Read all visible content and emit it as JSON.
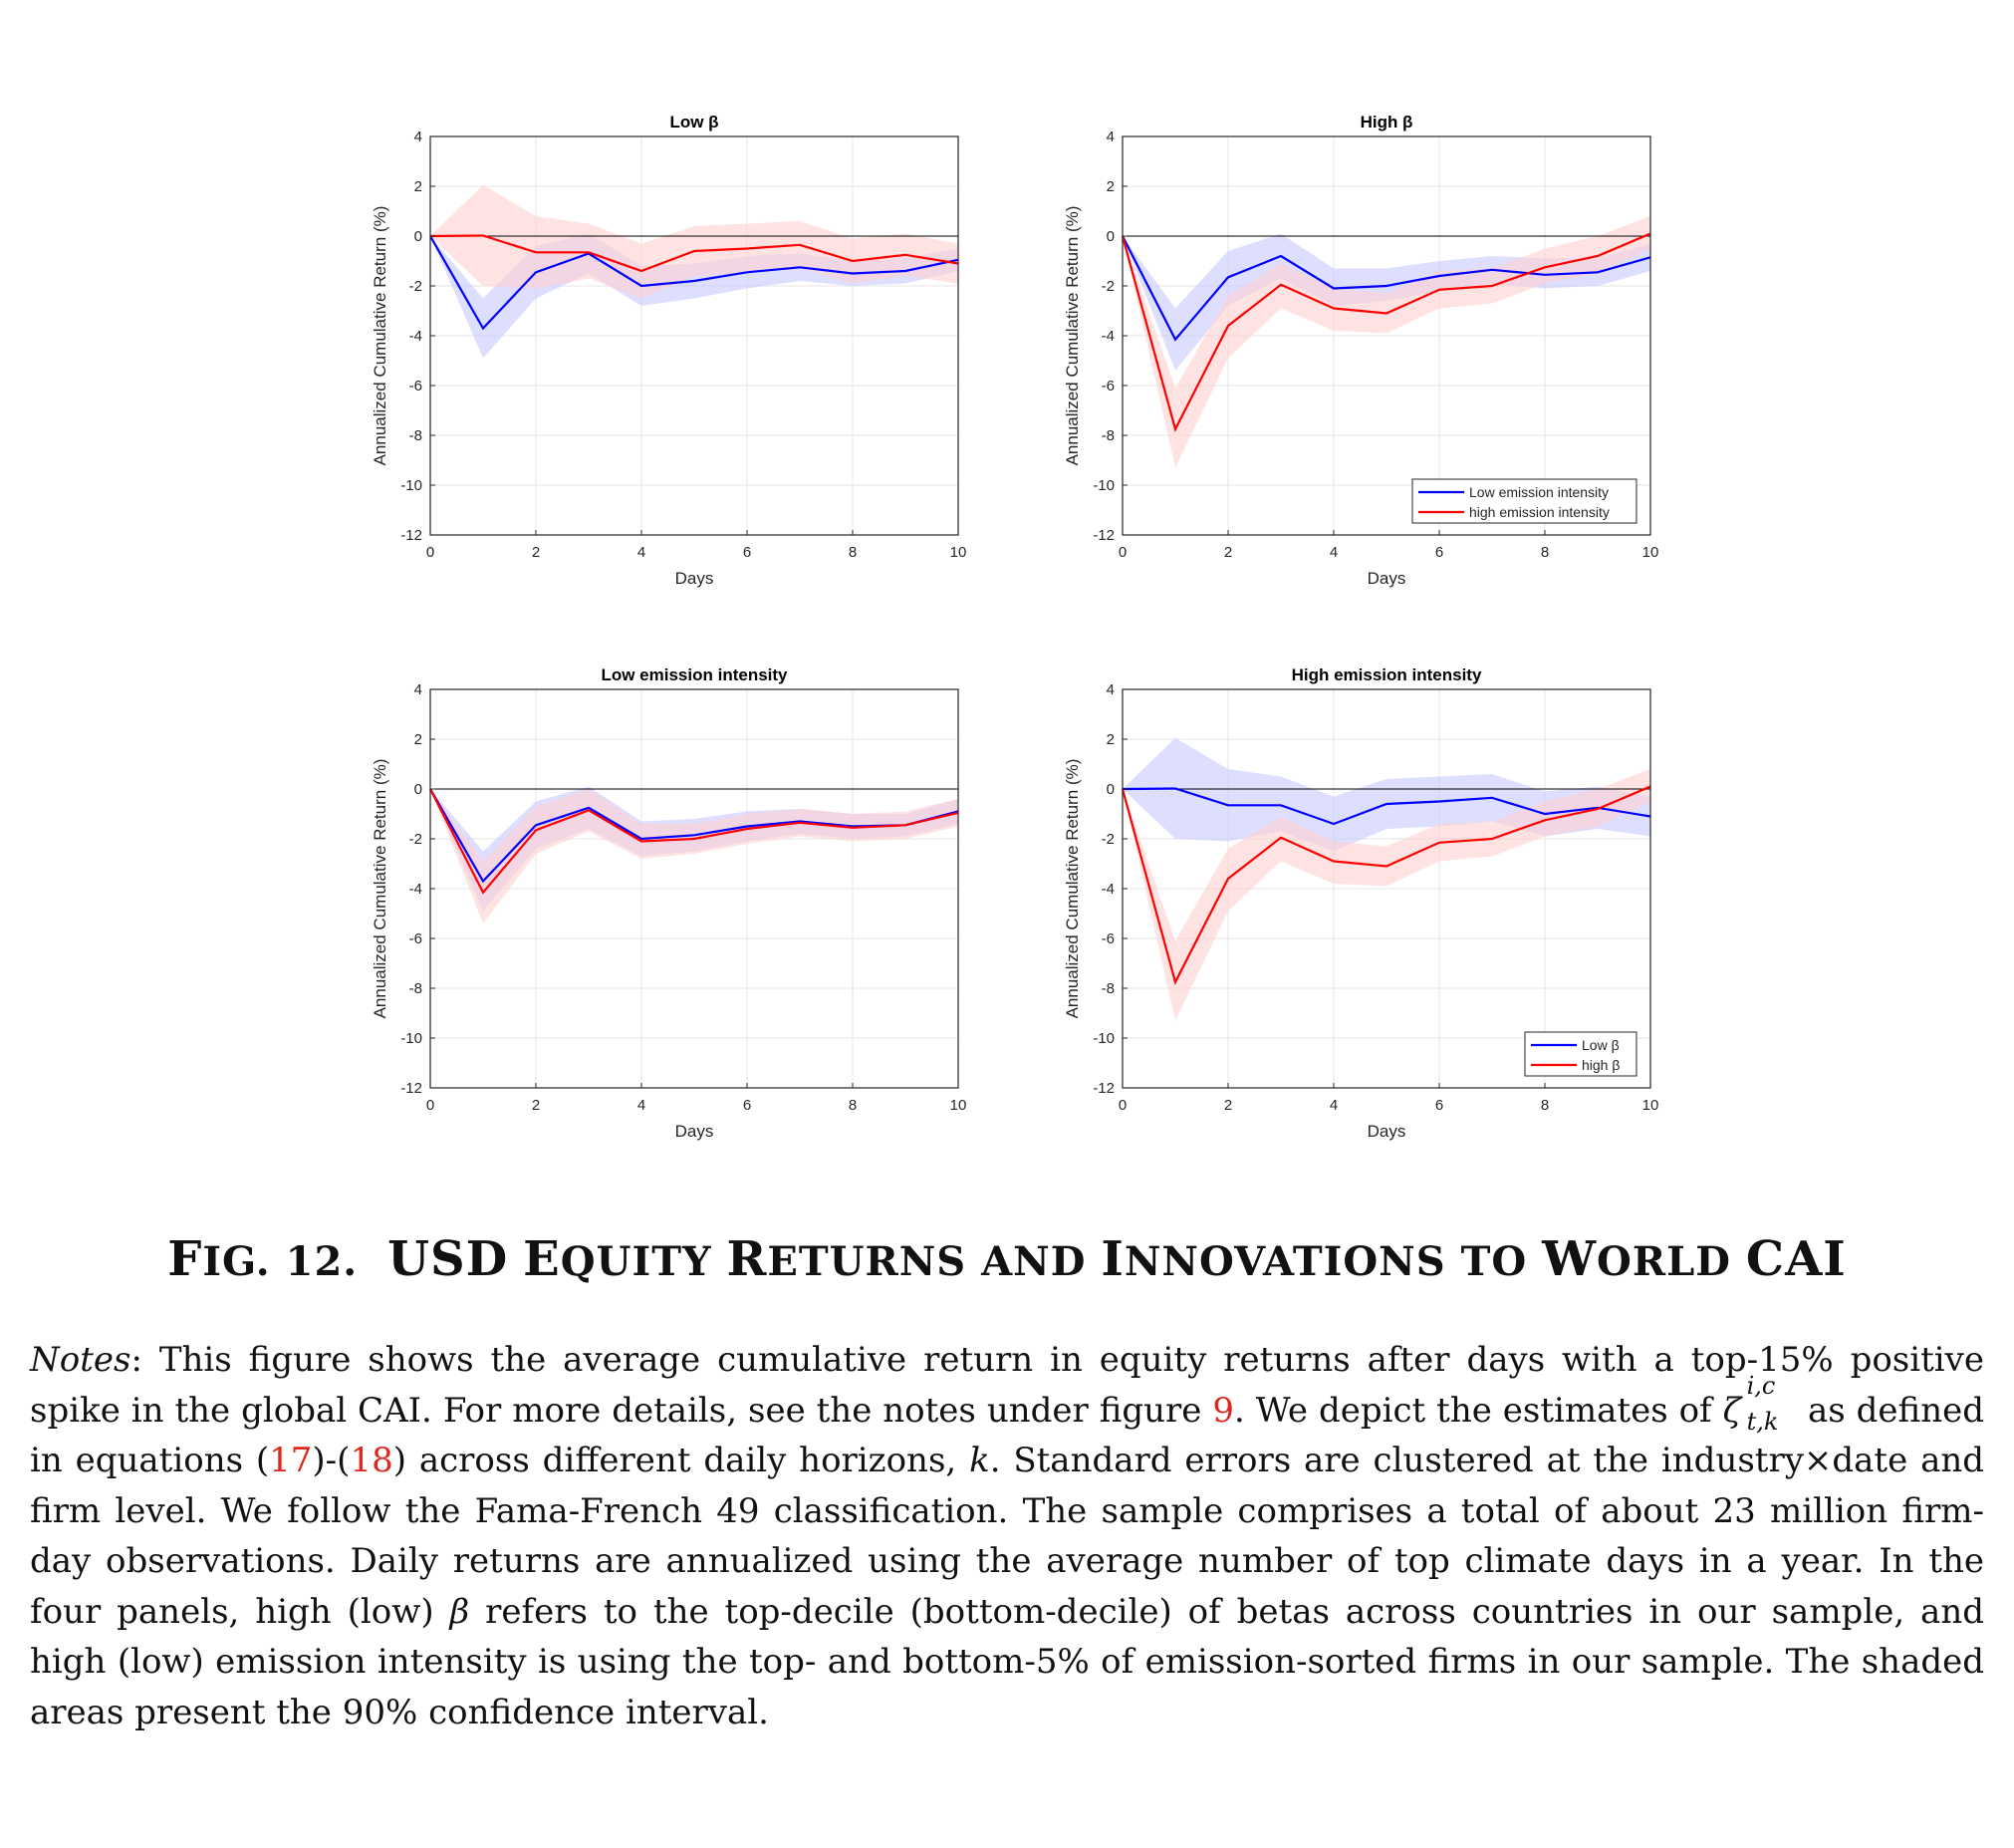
{
  "chart_data": [
    {
      "type": "line",
      "title": "Low β",
      "xlabel": "Days",
      "ylabel": "Annualized Cumulative Return (%)",
      "xlim": [
        0,
        10
      ],
      "ylim": [
        -12,
        4
      ],
      "xticks": [
        0,
        2,
        4,
        6,
        8,
        10
      ],
      "yticks": [
        4,
        2,
        0,
        -2,
        -4,
        -6,
        -8,
        -10,
        -12
      ],
      "x": [
        0,
        1,
        2,
        3,
        4,
        5,
        6,
        7,
        8,
        9,
        10
      ],
      "grid": true,
      "legend": null,
      "series": [
        {
          "color": "#0000ff",
          "band_color": "#c8c8ff",
          "values": [
            0,
            -3.7,
            -1.45,
            -0.7,
            -2.0,
            -1.8,
            -1.45,
            -1.25,
            -1.5,
            -1.4,
            -0.95
          ],
          "lower": [
            0,
            -4.9,
            -2.5,
            -1.5,
            -2.8,
            -2.5,
            -2.1,
            -1.8,
            -2.0,
            -1.9,
            -1.4
          ],
          "upper": [
            0,
            -2.5,
            -0.4,
            0.1,
            -1.2,
            -1.1,
            -0.8,
            -0.7,
            -1.0,
            -0.9,
            -0.5
          ]
        },
        {
          "color": "#ff0000",
          "band_color": "#ffd0d0",
          "values": [
            0,
            0.02,
            -0.65,
            -0.65,
            -1.4,
            -0.6,
            -0.5,
            -0.35,
            -1.0,
            -0.75,
            -1.1
          ],
          "lower": [
            0,
            -2.0,
            -2.1,
            -1.7,
            -2.5,
            -1.6,
            -1.5,
            -1.3,
            -1.9,
            -1.6,
            -1.9
          ],
          "upper": [
            0,
            2.05,
            0.8,
            0.5,
            -0.3,
            0.4,
            0.5,
            0.6,
            -0.1,
            0.1,
            -0.3
          ]
        }
      ]
    },
    {
      "type": "line",
      "title": "High β",
      "xlabel": "Days",
      "ylabel": "Annualized Cumulative Return (%)",
      "xlim": [
        0,
        10
      ],
      "ylim": [
        -12,
        4
      ],
      "xticks": [
        0,
        2,
        4,
        6,
        8,
        10
      ],
      "yticks": [
        4,
        2,
        0,
        -2,
        -4,
        -6,
        -8,
        -10,
        -12
      ],
      "x": [
        0,
        1,
        2,
        3,
        4,
        5,
        6,
        7,
        8,
        9,
        10
      ],
      "grid": true,
      "legend": "bottom-right",
      "series": [
        {
          "name": "Low emission intensity",
          "color": "#0000ff",
          "band_color": "#c8c8ff",
          "values": [
            0,
            -4.15,
            -1.65,
            -0.8,
            -2.1,
            -2.0,
            -1.6,
            -1.35,
            -1.55,
            -1.45,
            -0.85
          ],
          "lower": [
            0,
            -5.4,
            -2.8,
            -1.7,
            -2.8,
            -2.6,
            -2.2,
            -1.9,
            -2.1,
            -2.0,
            -1.4
          ],
          "upper": [
            0,
            -2.9,
            -0.6,
            0.1,
            -1.3,
            -1.3,
            -1.0,
            -0.8,
            -0.9,
            -0.9,
            -0.3
          ]
        },
        {
          "name": "high emission intensity",
          "color": "#ff0000",
          "band_color": "#ffd0d0",
          "values": [
            0,
            -7.75,
            -3.6,
            -1.95,
            -2.9,
            -3.1,
            -2.15,
            -2.0,
            -1.25,
            -0.8,
            0.1
          ],
          "lower": [
            0,
            -9.3,
            -4.9,
            -2.9,
            -3.8,
            -3.9,
            -2.9,
            -2.7,
            -1.9,
            -1.5,
            -0.5
          ],
          "upper": [
            0,
            -6.1,
            -2.4,
            -1.1,
            -2.1,
            -2.3,
            -1.4,
            -1.3,
            -0.5,
            0.0,
            0.8
          ]
        }
      ]
    },
    {
      "type": "line",
      "title": "Low emission intensity",
      "xlabel": "Days",
      "ylabel": "Annualized Cumulative Return (%)",
      "xlim": [
        0,
        10
      ],
      "ylim": [
        -12,
        4
      ],
      "xticks": [
        0,
        2,
        4,
        6,
        8,
        10
      ],
      "yticks": [
        4,
        2,
        0,
        -2,
        -4,
        -6,
        -8,
        -10,
        -12
      ],
      "x": [
        0,
        1,
        2,
        3,
        4,
        5,
        6,
        7,
        8,
        9,
        10
      ],
      "grid": true,
      "legend": null,
      "series": [
        {
          "color": "#0000ff",
          "band_color": "#c8c8ff",
          "values": [
            0,
            -3.7,
            -1.45,
            -0.75,
            -2.0,
            -1.85,
            -1.5,
            -1.3,
            -1.5,
            -1.45,
            -0.9
          ],
          "lower": [
            0,
            -4.9,
            -2.4,
            -1.6,
            -2.7,
            -2.5,
            -2.1,
            -1.8,
            -2.0,
            -1.9,
            -1.4
          ],
          "upper": [
            0,
            -2.5,
            -0.5,
            0.1,
            -1.3,
            -1.2,
            -0.9,
            -0.8,
            -1.0,
            -1.0,
            -0.4
          ]
        },
        {
          "color": "#ff0000",
          "band_color": "#ffd0d0",
          "values": [
            0,
            -4.15,
            -1.65,
            -0.85,
            -2.1,
            -2.0,
            -1.6,
            -1.35,
            -1.55,
            -1.45,
            -0.95
          ],
          "lower": [
            0,
            -5.4,
            -2.6,
            -1.7,
            -2.8,
            -2.6,
            -2.2,
            -1.9,
            -2.1,
            -2.0,
            -1.5
          ],
          "upper": [
            0,
            -2.9,
            -0.7,
            0.0,
            -1.4,
            -1.4,
            -1.0,
            -0.8,
            -1.0,
            -0.9,
            -0.4
          ]
        }
      ]
    },
    {
      "type": "line",
      "title": "High emission intensity",
      "xlabel": "Days",
      "ylabel": "Annualized Cumulative Return (%)",
      "xlim": [
        0,
        10
      ],
      "ylim": [
        -12,
        4
      ],
      "xticks": [
        0,
        2,
        4,
        6,
        8,
        10
      ],
      "yticks": [
        4,
        2,
        0,
        -2,
        -4,
        -6,
        -8,
        -10,
        -12
      ],
      "x": [
        0,
        1,
        2,
        3,
        4,
        5,
        6,
        7,
        8,
        9,
        10
      ],
      "grid": true,
      "legend": "bottom-right",
      "series": [
        {
          "name": "Low β",
          "color": "#0000ff",
          "band_color": "#c8c8ff",
          "values": [
            0,
            0.02,
            -0.65,
            -0.65,
            -1.4,
            -0.6,
            -0.5,
            -0.35,
            -1.0,
            -0.75,
            -1.1
          ],
          "lower": [
            0,
            -2.0,
            -2.1,
            -1.7,
            -2.5,
            -1.6,
            -1.5,
            -1.3,
            -1.9,
            -1.6,
            -1.9
          ],
          "upper": [
            0,
            2.05,
            0.8,
            0.5,
            -0.3,
            0.4,
            0.5,
            0.6,
            -0.1,
            0.1,
            -0.3
          ]
        },
        {
          "name": "high β",
          "color": "#ff0000",
          "band_color": "#ffd0d0",
          "values": [
            0,
            -7.75,
            -3.6,
            -1.95,
            -2.9,
            -3.1,
            -2.15,
            -2.0,
            -1.25,
            -0.8,
            0.1
          ],
          "lower": [
            0,
            -9.3,
            -4.9,
            -2.9,
            -3.8,
            -3.9,
            -2.9,
            -2.7,
            -1.9,
            -1.5,
            -0.5
          ],
          "upper": [
            0,
            -6.1,
            -2.4,
            -1.1,
            -2.1,
            -2.3,
            -1.4,
            -1.3,
            -0.5,
            0.0,
            0.8
          ]
        }
      ]
    }
  ],
  "caption": {
    "f": "F",
    "ig": "IG",
    "num": ". 12.",
    "w1": "USD",
    "w2a": "E",
    "w2b": "QUITY",
    "w3a": "R",
    "w3b": "ETURNS",
    "w4": "AND",
    "w5a": "I",
    "w5b": "NNOVATIONS",
    "w6": "TO",
    "w7a": "W",
    "w7b": "ORLD",
    "w8": "CAI"
  },
  "notes": {
    "label": "Notes",
    "p1": ": This figure shows the average cumulative return in equity returns after days with a top-15% positive spike in the global CAI. For more details, see the notes under figure ",
    "ref1": "9",
    "p2": ". We depict the estimates of ",
    "zeta": "ζ",
    "zeta_sup": "i,c",
    "zeta_sub": "t,k",
    "p3": " as defined in equations (",
    "ref2": "17",
    "p4": ")-(",
    "ref3": "18",
    "p5": ") across different daily horizons, ",
    "k": "k",
    "p6": ". Standard errors are clustered at the industry×date and firm level. We follow the Fama-French 49 classification. The sample comprises a total of about 23 million firm-day observations. Daily returns are annualized using the average number of top climate days in a year. In the four panels, high (low) ",
    "beta1": "β",
    "p7": " refers to the top-decile (bottom-decile) of betas across countries in our sample, and high (low) emission intensity is using the top- and bottom-5% of emission-sorted firms in our sample. The shaded areas present the 90% confidence interval."
  }
}
